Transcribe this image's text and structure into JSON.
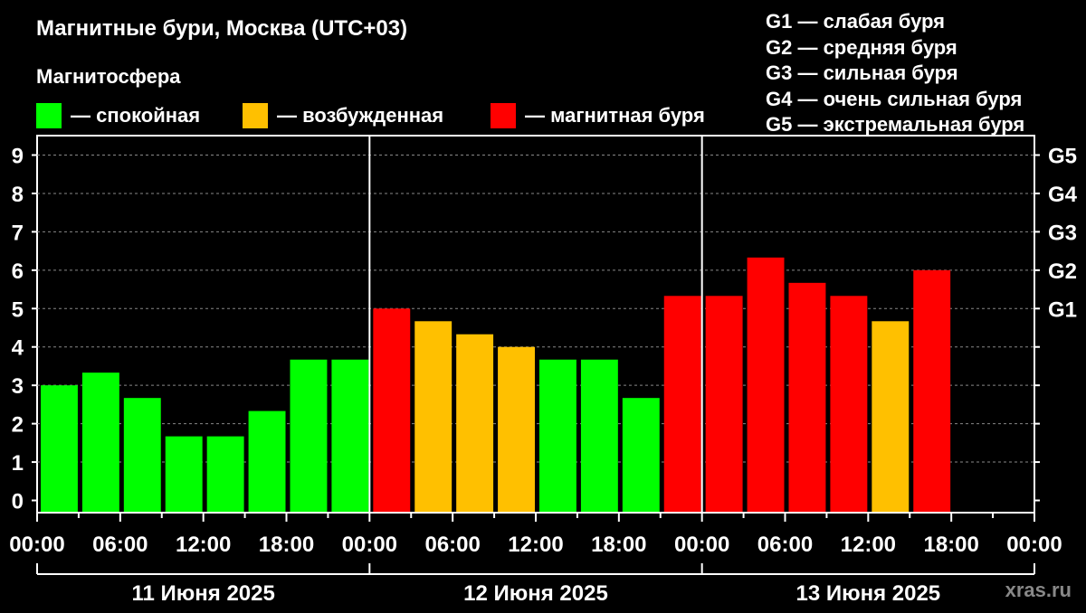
{
  "title": "Магнитные бури, Москва (UTC+03)",
  "legend": {
    "title": "Магнитосфера",
    "items": [
      {
        "label": "— спокойная",
        "color": "#00ff00"
      },
      {
        "label": "— возбужденная",
        "color": "#ffc000"
      },
      {
        "label": "— магнитная буря",
        "color": "#ff0000"
      }
    ]
  },
  "storm_levels": [
    "G1 — слабая буря",
    "G2 — средняя буря",
    "G3 — сильная буря",
    "G4 — очень сильная буря",
    "G5 — экстремальная буря"
  ],
  "watermark": "xras.ru",
  "chart_data": {
    "type": "bar",
    "ylim": [
      0,
      9
    ],
    "yticks": [
      "0",
      "1",
      "2",
      "3",
      "4",
      "5",
      "6",
      "7",
      "8",
      "9"
    ],
    "right_axis_labels": [
      {
        "label": "G1",
        "at": 5
      },
      {
        "label": "G2",
        "at": 6
      },
      {
        "label": "G3",
        "at": 7
      },
      {
        "label": "G4",
        "at": 8
      },
      {
        "label": "G5",
        "at": 9
      }
    ],
    "xtick_labels": [
      "00:00",
      "06:00",
      "12:00",
      "18:00",
      "00:00",
      "06:00",
      "12:00",
      "18:00",
      "00:00",
      "06:00",
      "12:00",
      "18:00",
      "00:00"
    ],
    "days": [
      "11 Июня 2025",
      "12 Июня 2025",
      "13 Июня 2025"
    ],
    "grid": true,
    "colors": {
      "quiet": "#00ff00",
      "unsettled": "#ffc000",
      "storm": "#ff0000"
    },
    "values": [
      3.0,
      3.33,
      2.67,
      1.67,
      1.67,
      2.33,
      3.67,
      3.67,
      5.0,
      4.67,
      4.33,
      4.0,
      3.67,
      3.67,
      2.67,
      5.33,
      5.33,
      6.33,
      5.67,
      5.33,
      4.67,
      6.0
    ],
    "levels": [
      "quiet",
      "quiet",
      "quiet",
      "quiet",
      "quiet",
      "quiet",
      "quiet",
      "quiet",
      "storm",
      "unsettled",
      "unsettled",
      "unsettled",
      "quiet",
      "quiet",
      "quiet",
      "storm",
      "storm",
      "storm",
      "storm",
      "storm",
      "unsettled",
      "storm"
    ]
  }
}
